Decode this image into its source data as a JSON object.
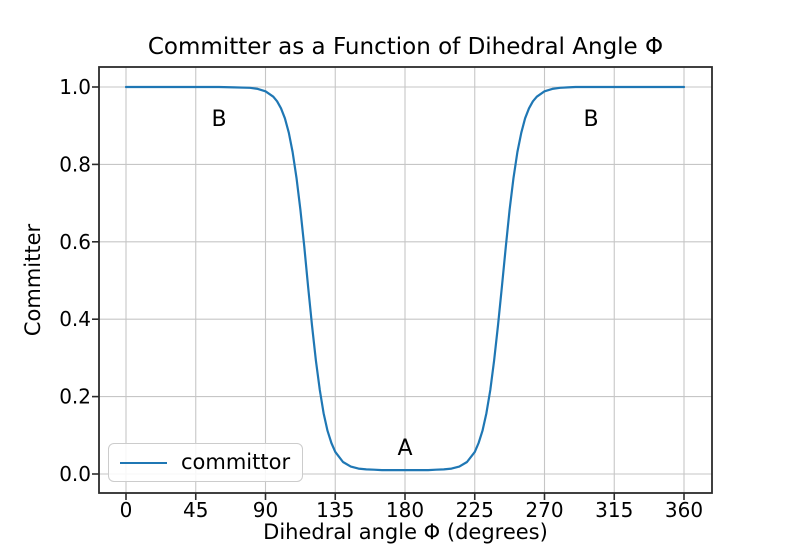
{
  "chart_data": {
    "type": "line",
    "title": "Committer as a Function of Dihedral Angle Φ",
    "xlabel": "Dihedral angle Φ (degrees)",
    "ylabel": "Committer",
    "xlim": [
      0,
      360
    ],
    "ylim": [
      0.0,
      1.0
    ],
    "x_ticks": [
      0,
      45,
      90,
      135,
      180,
      225,
      270,
      315,
      360
    ],
    "y_ticks": [
      0.0,
      0.2,
      0.4,
      0.6,
      0.8,
      1.0
    ],
    "y_tick_labels": [
      "0.0",
      "0.2",
      "0.4",
      "0.6",
      "0.8",
      "1.0"
    ],
    "grid": true,
    "legend": {
      "position": "lower left",
      "entries": [
        "committor"
      ]
    },
    "series": [
      {
        "name": "committor",
        "color": "#1f77b4",
        "x": [
          0,
          10,
          20,
          30,
          40,
          50,
          60,
          70,
          80,
          85,
          90,
          95,
          97.5,
          100,
          102.5,
          105,
          107.5,
          110,
          112.5,
          115,
          117.5,
          120,
          122.5,
          125,
          127.5,
          130,
          132.5,
          135,
          140,
          145,
          150,
          155,
          160,
          165,
          170,
          180,
          190,
          195,
          200,
          205,
          210,
          215,
          220,
          225,
          227.5,
          230,
          232.5,
          235,
          237.5,
          240,
          242.5,
          245,
          247.5,
          250,
          252.5,
          255,
          257.5,
          260,
          262.5,
          265,
          270,
          275,
          280,
          285,
          290,
          300,
          310,
          320,
          330,
          340,
          350,
          360
        ],
        "y": [
          1.0,
          1.0,
          1.0,
          1.0,
          1.0,
          1.0,
          1.0,
          0.999,
          0.998,
          0.995,
          0.989,
          0.975,
          0.963,
          0.945,
          0.919,
          0.882,
          0.832,
          0.765,
          0.683,
          0.587,
          0.484,
          0.384,
          0.293,
          0.217,
          0.157,
          0.112,
          0.08,
          0.057,
          0.031,
          0.019,
          0.014,
          0.012,
          0.011,
          0.01,
          0.01,
          0.01,
          0.01,
          0.01,
          0.011,
          0.012,
          0.014,
          0.019,
          0.031,
          0.057,
          0.08,
          0.112,
          0.157,
          0.217,
          0.293,
          0.384,
          0.484,
          0.587,
          0.683,
          0.765,
          0.832,
          0.882,
          0.919,
          0.945,
          0.963,
          0.975,
          0.989,
          0.995,
          0.998,
          0.999,
          1.0,
          1.0,
          1.0,
          1.0,
          1.0,
          1.0,
          1.0,
          1.0
        ]
      }
    ],
    "annotations": [
      {
        "text": "B",
        "x": 60,
        "y": 0.92
      },
      {
        "text": "A",
        "x": 180,
        "y": 0.07
      },
      {
        "text": "B",
        "x": 300,
        "y": 0.92
      }
    ]
  },
  "colors": {
    "line": "#1f77b4",
    "grid": "#c6c6c6",
    "spine": "#2b2b2b",
    "tick": "#2b2b2b",
    "text": "#000000",
    "legend_border": "#cccccc"
  }
}
